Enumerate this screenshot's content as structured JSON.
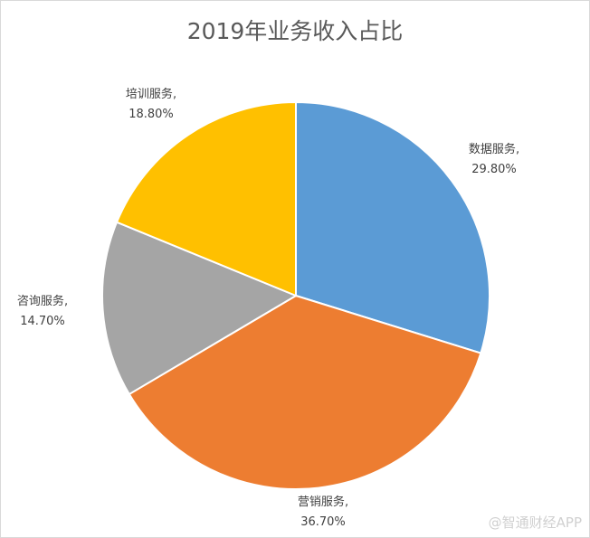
{
  "chart_data": {
    "type": "pie",
    "title": "2019年业务收入占比",
    "start_angle": "top",
    "direction": "clockwise",
    "slices": [
      {
        "label": "数据服务",
        "value": 29.8,
        "display": "29.80%",
        "color": "#5B9BD5"
      },
      {
        "label": "营销服务",
        "value": 36.7,
        "display": "36.70%",
        "color": "#ED7D31"
      },
      {
        "label": "咨询服务",
        "value": 14.7,
        "display": "14.70%",
        "color": "#A5A5A5"
      },
      {
        "label": "培训服务",
        "value": 18.8,
        "display": "18.80%",
        "color": "#FFC000"
      }
    ],
    "legend": "none"
  },
  "watermark": "@智通财经APP"
}
